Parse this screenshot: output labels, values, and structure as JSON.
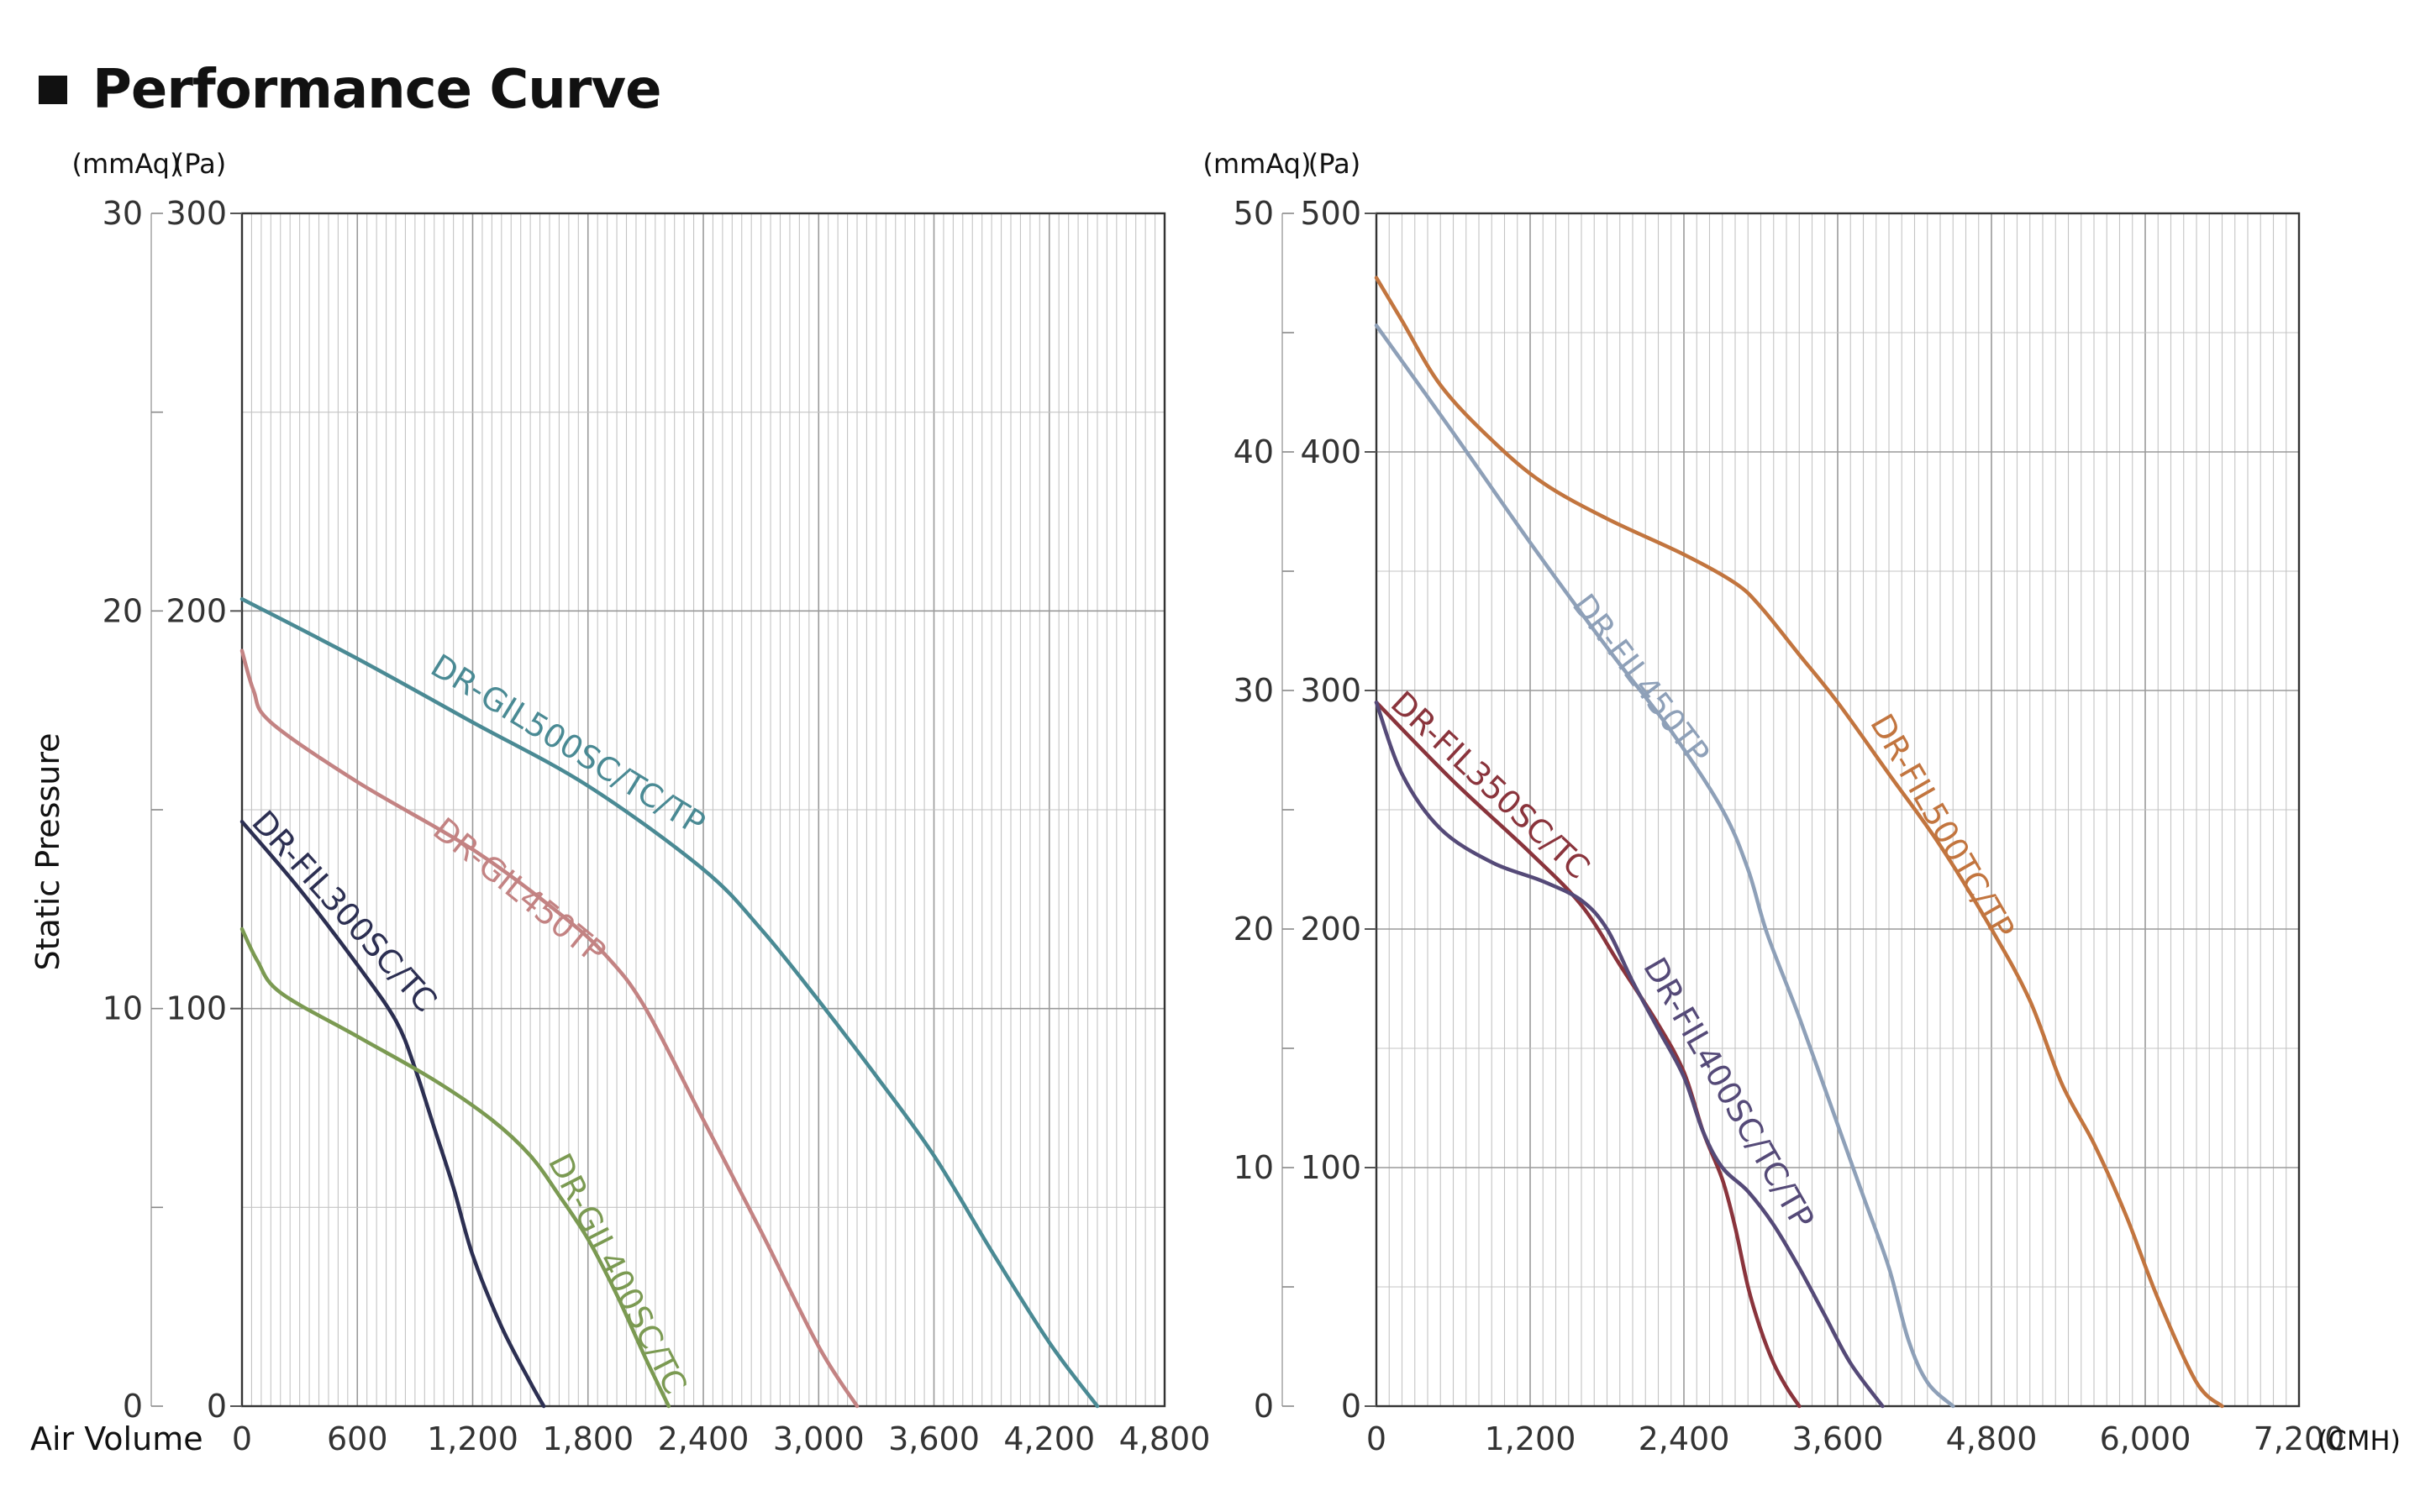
{
  "title": "Performance Curve",
  "colors": {
    "DR-GIL500SC/TC/TP": "#4a8a94",
    "DR-GIL450TP": "#c38383",
    "DR-FIL300SC/TC": "#2c2f52",
    "DR-GIL400SC/TC": "#7b9a52",
    "DR-FIL450TP": "#8ea0b8",
    "DR-FIL500TC/TP": "#c2753f",
    "DR-FIL350SC/TC": "#8a343c",
    "DR-FIL400SC/TC/TP": "#554a78"
  },
  "chart_data": [
    {
      "type": "line",
      "ylabel": "Static Pressure",
      "xlabel": "Air Volume",
      "y_unit_left": "(mmAq)",
      "y_unit_right": "(Pa)",
      "xlim": [
        0,
        4800
      ],
      "ylim": [
        0,
        300
      ],
      "y2lim": [
        0,
        30
      ],
      "x_ticks": [
        "0",
        "600",
        "1,200",
        "1,800",
        "2,400",
        "3,000",
        "3,600",
        "4,200",
        "4,800"
      ],
      "y_ticks": [
        "0",
        "100",
        "200",
        "300"
      ],
      "y2_ticks": [
        "0",
        "10",
        "20",
        "30"
      ],
      "grid": true,
      "series": [
        {
          "name": "DR-GIL500SC/TC/TP",
          "points": [
            [
              0,
              203
            ],
            [
              600,
              188
            ],
            [
              1200,
              172
            ],
            [
              1800,
              156
            ],
            [
              2400,
              135
            ],
            [
              2700,
              120
            ],
            [
              3000,
              102
            ],
            [
              3300,
              83
            ],
            [
              3600,
              63
            ],
            [
              3900,
              39
            ],
            [
              4200,
              16
            ],
            [
              4450,
              0
            ]
          ]
        },
        {
          "name": "DR-GIL450TP",
          "points": [
            [
              0,
              190
            ],
            [
              60,
              180
            ],
            [
              150,
              172
            ],
            [
              600,
              157
            ],
            [
              1200,
              140
            ],
            [
              1650,
              124
            ],
            [
              1900,
              113
            ],
            [
              2100,
              100
            ],
            [
              2400,
              72
            ],
            [
              2700,
              44
            ],
            [
              3000,
              15
            ],
            [
              3200,
              0
            ]
          ]
        },
        {
          "name": "DR-FIL300SC/TC",
          "points": [
            [
              0,
              147
            ],
            [
              300,
              130
            ],
            [
              600,
              111
            ],
            [
              800,
              97
            ],
            [
              900,
              85
            ],
            [
              1000,
              70
            ],
            [
              1100,
              55
            ],
            [
              1200,
              38
            ],
            [
              1350,
              20
            ],
            [
              1500,
              6
            ],
            [
              1570,
              0
            ]
          ]
        },
        {
          "name": "DR-GIL400SC/TC",
          "points": [
            [
              0,
              120
            ],
            [
              80,
              112
            ],
            [
              200,
              104
            ],
            [
              600,
              93
            ],
            [
              1000,
              82
            ],
            [
              1300,
              72
            ],
            [
              1500,
              63
            ],
            [
              1650,
              53
            ],
            [
              1800,
              42
            ],
            [
              1950,
              28
            ],
            [
              2100,
              12
            ],
            [
              2220,
              0
            ]
          ]
        }
      ]
    },
    {
      "type": "line",
      "y_unit_left": "(mmAq)",
      "y_unit_right": "(Pa)",
      "x_unit": "(CMH)",
      "xlim": [
        0,
        7200
      ],
      "ylim": [
        0,
        500
      ],
      "y2lim": [
        0,
        50
      ],
      "x_ticks": [
        "0",
        "1,200",
        "2,400",
        "3,600",
        "4,800",
        "6,000",
        "7,200"
      ],
      "y_ticks": [
        "0",
        "100",
        "200",
        "300",
        "400",
        "500"
      ],
      "y2_ticks": [
        "0",
        "10",
        "20",
        "30",
        "40",
        "50"
      ],
      "grid": true,
      "series": [
        {
          "name": "DR-FIL500TC/TP",
          "points": [
            [
              0,
              473
            ],
            [
              200,
              455
            ],
            [
              500,
              428
            ],
            [
              900,
              405
            ],
            [
              1300,
              387
            ],
            [
              1800,
              372
            ],
            [
              2400,
              357
            ],
            [
              2800,
              345
            ],
            [
              3000,
              335
            ],
            [
              3300,
              315
            ],
            [
              3600,
              295
            ],
            [
              4000,
              265
            ],
            [
              4400,
              235
            ],
            [
              4800,
              200
            ],
            [
              5100,
              170
            ],
            [
              5350,
              135
            ],
            [
              5600,
              110
            ],
            [
              5850,
              80
            ],
            [
              6100,
              45
            ],
            [
              6400,
              10
            ],
            [
              6600,
              0
            ]
          ]
        },
        {
          "name": "DR-FIL450TP",
          "points": [
            [
              0,
              453
            ],
            [
              600,
              408
            ],
            [
              1200,
              362
            ],
            [
              1800,
              318
            ],
            [
              2300,
              283
            ],
            [
              2700,
              250
            ],
            [
              2900,
              225
            ],
            [
              3050,
              198
            ],
            [
              3300,
              163
            ],
            [
              3600,
              118
            ],
            [
              3800,
              88
            ],
            [
              4000,
              58
            ],
            [
              4150,
              28
            ],
            [
              4300,
              10
            ],
            [
              4500,
              0
            ]
          ]
        },
        {
          "name": "DR-FIL350SC/TC",
          "points": [
            [
              0,
              295
            ],
            [
              600,
              262
            ],
            [
              1200,
              232
            ],
            [
              1600,
              210
            ],
            [
              1900,
              185
            ],
            [
              2200,
              160
            ],
            [
              2400,
              140
            ],
            [
              2550,
              115
            ],
            [
              2700,
              95
            ],
            [
              2800,
              75
            ],
            [
              2900,
              50
            ],
            [
              3000,
              32
            ],
            [
              3100,
              18
            ],
            [
              3200,
              8
            ],
            [
              3300,
              0
            ]
          ]
        },
        {
          "name": "DR-FIL400SC/TC/TP",
          "points": [
            [
              0,
              295
            ],
            [
              200,
              265
            ],
            [
              500,
              242
            ],
            [
              900,
              228
            ],
            [
              1300,
              220
            ],
            [
              1600,
              212
            ],
            [
              1800,
              200
            ],
            [
              2000,
              178
            ],
            [
              2200,
              158
            ],
            [
              2400,
              138
            ],
            [
              2550,
              115
            ],
            [
              2700,
              100
            ],
            [
              2900,
              90
            ],
            [
              3100,
              76
            ],
            [
              3300,
              58
            ],
            [
              3500,
              38
            ],
            [
              3700,
              18
            ],
            [
              3950,
              0
            ]
          ]
        }
      ]
    }
  ]
}
